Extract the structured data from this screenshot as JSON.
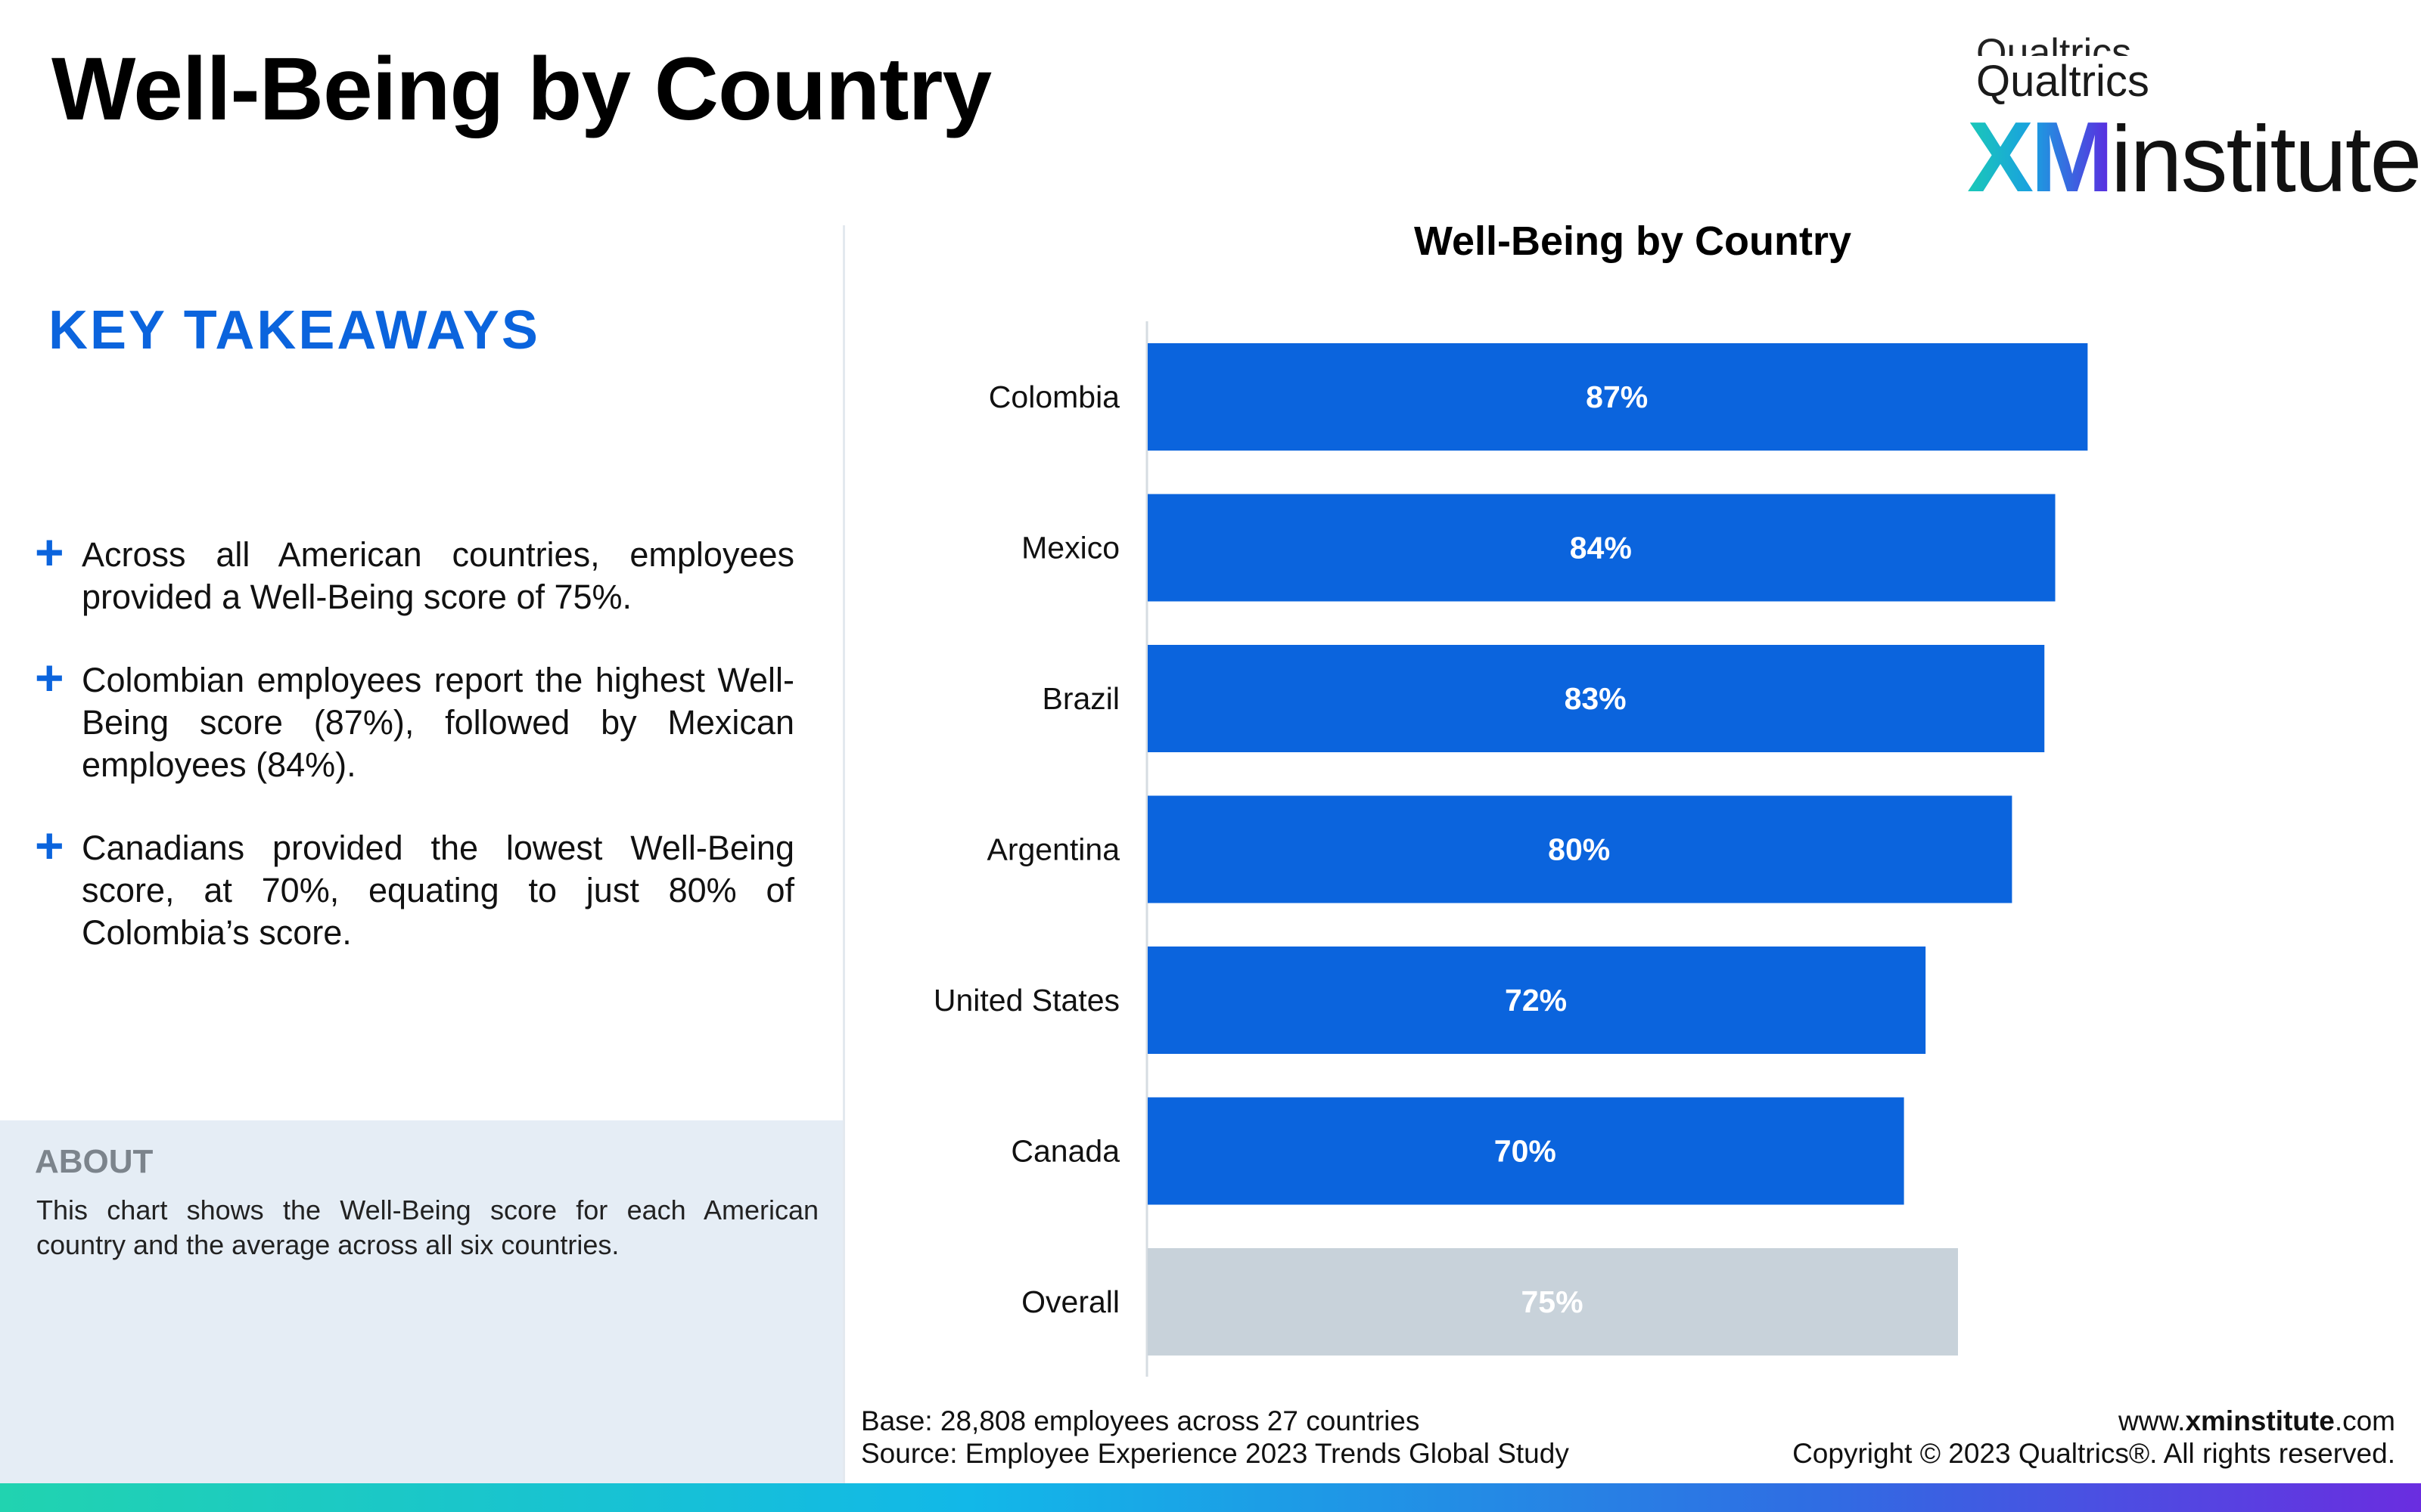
{
  "header": {
    "title": "Well-Being by Country"
  },
  "logo": {
    "ghost_text": "Qualtrics",
    "brand": "Qualtrics",
    "xm": "XM",
    "institute": "institute",
    "tm": "™"
  },
  "takeaways": {
    "title": "KEY TAKEAWAYS",
    "items": [
      {
        "marker": "+",
        "text": "Across all American countries, employees provided a Well-Being score of 75%."
      },
      {
        "marker": "+",
        "text": "Colombian employees report the highest Well-Being score (87%), followed by Mexican employees (84%)."
      },
      {
        "marker": "+",
        "text": "Canadians provided the lowest Well-Being score, at 70%, equating to just 80% of Colombia’s score."
      }
    ]
  },
  "about": {
    "title": "ABOUT",
    "text": "This chart shows the Well-Being score for each American country and the average across all six countries."
  },
  "chart_data": {
    "type": "bar",
    "orientation": "horizontal",
    "title": "Well-Being by Country",
    "categories": [
      "Colombia",
      "Mexico",
      "Brazil",
      "Argentina",
      "United States",
      "Canada",
      "Overall"
    ],
    "values": [
      87,
      84,
      83,
      80,
      72,
      70,
      75
    ],
    "data_labels": [
      "87%",
      "84%",
      "83%",
      "80%",
      "72%",
      "70%",
      "75%"
    ],
    "unit": "%",
    "xlim": [
      0,
      100
    ],
    "grid": false,
    "legend": "none",
    "colors": {
      "country": "#0b64dd",
      "overall": "#c8d2da",
      "axis": "#d6dce2"
    }
  },
  "footer": {
    "base": "Base: 28,808 employees across 27 countries",
    "source": "Source: Employee Experience 2023 Trends Global Study",
    "website_prefix": "www.",
    "website_bold": "xminstitute",
    "website_suffix": ".com",
    "copyright": "Copyright © 2023 Qualtrics®. All rights reserved."
  }
}
